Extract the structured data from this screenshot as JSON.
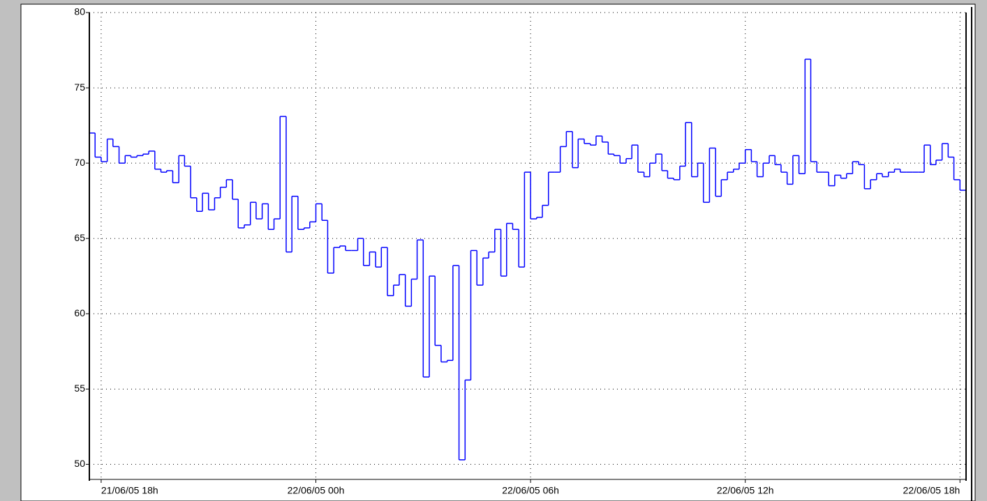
{
  "chart_data": {
    "type": "step",
    "x": [
      17.67,
      17.83,
      18,
      18.17,
      18.33,
      18.5,
      18.67,
      18.83,
      19,
      19.17,
      19.33,
      19.5,
      19.67,
      19.83,
      20,
      20.17,
      20.33,
      20.5,
      20.67,
      20.83,
      21,
      21.17,
      21.33,
      21.5,
      21.67,
      21.83,
      22,
      22.17,
      22.33,
      22.5,
      22.67,
      22.83,
      23,
      23.17,
      23.33,
      23.5,
      23.67,
      23.83,
      24,
      24.17,
      24.33,
      24.5,
      24.67,
      24.83,
      25,
      25.17,
      25.33,
      25.5,
      25.67,
      25.83,
      26,
      26.17,
      26.33,
      26.5,
      26.67,
      26.83,
      27,
      27.17,
      27.33,
      27.5,
      27.67,
      27.83,
      28,
      28.17,
      28.33,
      28.5,
      28.67,
      28.83,
      29,
      29.17,
      29.33,
      29.5,
      29.67,
      29.83,
      30,
      30.17,
      30.33,
      30.5,
      30.67,
      30.83,
      31,
      31.17,
      31.33,
      31.5,
      31.67,
      31.83,
      32,
      32.17,
      32.33,
      32.5,
      32.67,
      32.83,
      33,
      33.17,
      33.33,
      33.5,
      33.67,
      33.83,
      34,
      34.17,
      34.33,
      34.5,
      34.67,
      34.83,
      35,
      35.17,
      35.33,
      35.5,
      35.67,
      35.83,
      36,
      36.17,
      36.33,
      36.5,
      36.67,
      36.83,
      37,
      37.17,
      37.33,
      37.5,
      37.67,
      37.83,
      38,
      38.17,
      38.33,
      38.5,
      38.67,
      38.83,
      39,
      39.17,
      39.33,
      39.5,
      39.67,
      39.83,
      40,
      40.17,
      40.33,
      40.5,
      40.67,
      40.83,
      41,
      41.17,
      41.33,
      41.5,
      41.67,
      41.83,
      42
    ],
    "series": [
      {
        "color": "#0000ff",
        "values": [
          72.0,
          70.4,
          70.1,
          71.6,
          71.1,
          70.0,
          70.5,
          70.4,
          70.5,
          70.6,
          70.8,
          69.6,
          69.4,
          69.5,
          68.7,
          70.5,
          69.8,
          67.7,
          66.8,
          68.0,
          66.9,
          67.7,
          68.4,
          68.9,
          67.6,
          65.7,
          65.9,
          67.4,
          66.3,
          67.3,
          65.6,
          66.3,
          73.1,
          64.1,
          67.8,
          65.6,
          65.7,
          66.1,
          67.3,
          66.2,
          62.7,
          64.4,
          64.5,
          64.2,
          64.2,
          65.0,
          63.2,
          64.1,
          63.1,
          64.4,
          61.2,
          61.9,
          62.6,
          60.5,
          62.3,
          64.9,
          55.8,
          62.5,
          57.9,
          56.8,
          56.9,
          63.2,
          50.3,
          55.6,
          64.2,
          61.9,
          63.7,
          64.1,
          65.6,
          62.5,
          66.0,
          65.6,
          63.1,
          69.4,
          66.3,
          66.4,
          67.2,
          69.4,
          69.4,
          71.1,
          72.1,
          69.7,
          71.6,
          71.3,
          71.2,
          71.8,
          71.4,
          70.6,
          70.5,
          70.0,
          70.3,
          71.2,
          69.4,
          69.1,
          70.0,
          70.6,
          69.5,
          69.0,
          68.9,
          69.8,
          72.7,
          69.1,
          70.0,
          67.4,
          71.0,
          67.8,
          68.9,
          69.4,
          69.6,
          70.0,
          70.9,
          70.1,
          69.1,
          70.0,
          70.5,
          69.9,
          69.4,
          68.6,
          70.5,
          69.3,
          76.9,
          70.1,
          69.4,
          69.4,
          68.5,
          69.2,
          69.0,
          69.3,
          70.1,
          69.9,
          68.3,
          68.9,
          69.3,
          69.1,
          69.4,
          69.6,
          69.4,
          69.4,
          69.4,
          69.4,
          71.2,
          69.9,
          70.2,
          71.3,
          70.4,
          68.9,
          68.2
        ]
      }
    ],
    "xlim": [
      17.67,
      42.17
    ],
    "xticks": [
      {
        "value": 18,
        "label": "21/06/05 18h"
      },
      {
        "value": 24,
        "label": "22/06/05 00h"
      },
      {
        "value": 30,
        "label": "22/06/05 06h"
      },
      {
        "value": 36,
        "label": "22/06/05 12h"
      },
      {
        "value": 42,
        "label": "22/06/05 18h"
      }
    ],
    "ylim": [
      49,
      80
    ],
    "yticks": [
      50,
      55,
      60,
      65,
      70,
      75,
      80
    ],
    "grid": true
  }
}
